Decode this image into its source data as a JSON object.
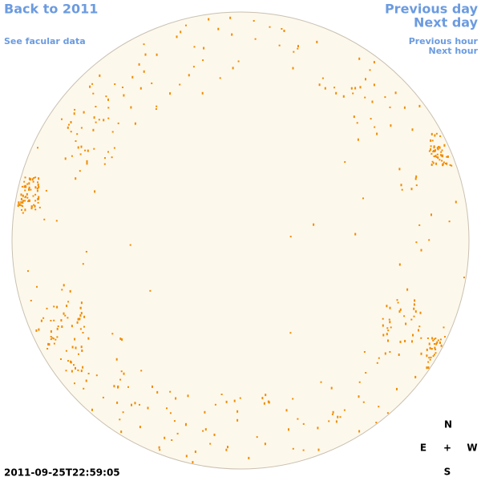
{
  "nav": {
    "back": "Back to 2011",
    "facular": "See facular data",
    "previous_day": "Previous day",
    "next_day": "Next day",
    "previous_hour": "Previous hour",
    "next_hour": "Next hour"
  },
  "timestamp": "2011-09-25T22:59:05",
  "compass": {
    "north": "N",
    "east": "E",
    "center": "+",
    "west": "W",
    "south": "S"
  }
}
